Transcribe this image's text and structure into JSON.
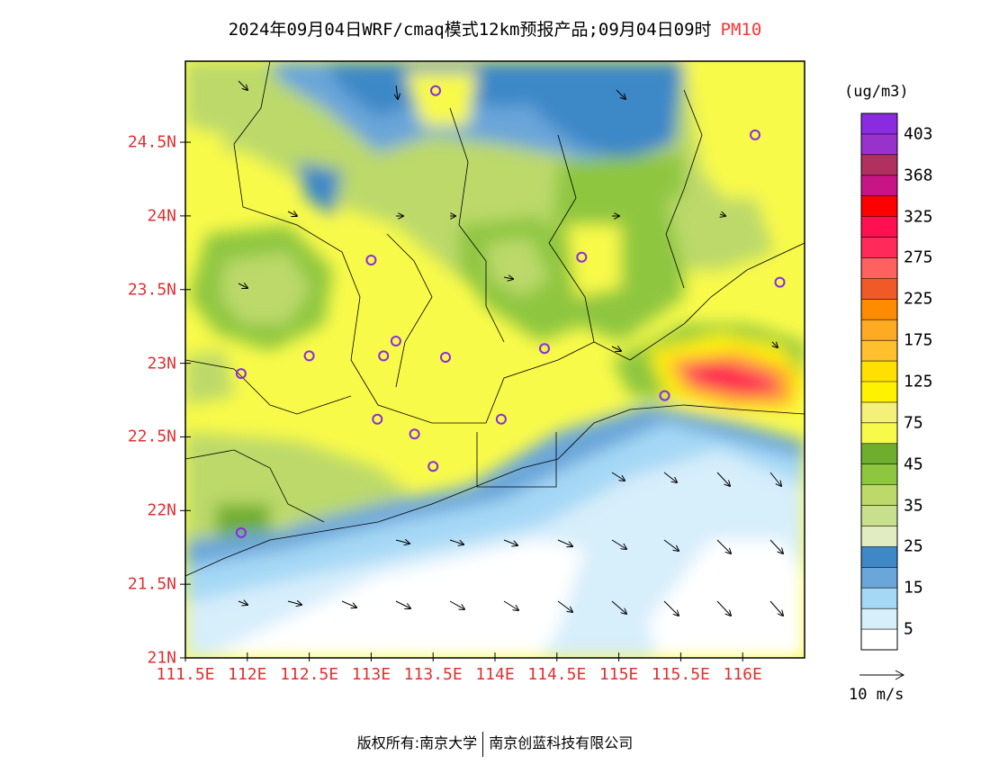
{
  "title": {
    "main": "2024年09月04日WRF/cmaq模式12km预报产品;09月04日09时",
    "pollutant": "PM10"
  },
  "colorbar": {
    "units": "(ug/m3)",
    "labels": [
      "403",
      "368",
      "325",
      "275",
      "225",
      "175",
      "125",
      "75",
      "45",
      "35",
      "25",
      "15",
      "5"
    ],
    "colors": [
      "#8a2be2",
      "#9932cc",
      "#b03060",
      "#c71585",
      "#ff0000",
      "#ff1050",
      "#ff2a5a",
      "#ff6060",
      "#f05a28",
      "#ff8c00",
      "#ffaa22",
      "#ffc030",
      "#ffe000",
      "#fff200",
      "#f5f07a",
      "#f8fa4a",
      "#6fad2e",
      "#8ec63f",
      "#bcd96a",
      "#c8df8c",
      "#e1ecc2",
      "#3e88c7",
      "#6aa6d9",
      "#a5d8f5",
      "#d7eefb",
      "#ffffff"
    ]
  },
  "axes": {
    "lat_labels": [
      "24.5N",
      "24N",
      "23.5N",
      "23N",
      "22.5N",
      "22N",
      "21.5N",
      "21N"
    ],
    "lat_values": [
      24.5,
      24,
      23.5,
      23,
      22.5,
      22,
      21.5,
      21
    ],
    "lon_labels": [
      "111.5E",
      "112E",
      "112.5E",
      "113E",
      "113.5E",
      "114E",
      "114.5E",
      "115E",
      "115.5E",
      "116E"
    ],
    "lon_values": [
      111.5,
      112,
      112.5,
      113,
      113.5,
      114,
      114.5,
      115,
      115.5,
      116
    ],
    "lat_range": [
      21,
      25.05
    ],
    "lon_range": [
      111.5,
      116.5
    ]
  },
  "vector_legend": {
    "label": "10 m/s"
  },
  "footer": {
    "left": "版权所有:南京大学",
    "right": "南京创蓝科技有限公司"
  },
  "stations": [
    [
      113.52,
      24.85
    ],
    [
      116.1,
      24.55
    ],
    [
      114.7,
      23.72
    ],
    [
      116.3,
      23.55
    ],
    [
      113.0,
      23.7
    ],
    [
      112.5,
      23.05
    ],
    [
      113.1,
      23.05
    ],
    [
      113.2,
      23.15
    ],
    [
      113.6,
      23.04
    ],
    [
      114.4,
      23.1
    ],
    [
      111.95,
      22.93
    ],
    [
      113.05,
      22.62
    ],
    [
      113.35,
      22.52
    ],
    [
      114.05,
      22.62
    ],
    [
      113.5,
      22.3
    ],
    [
      115.37,
      22.78
    ],
    [
      111.95,
      21.85
    ]
  ]
}
